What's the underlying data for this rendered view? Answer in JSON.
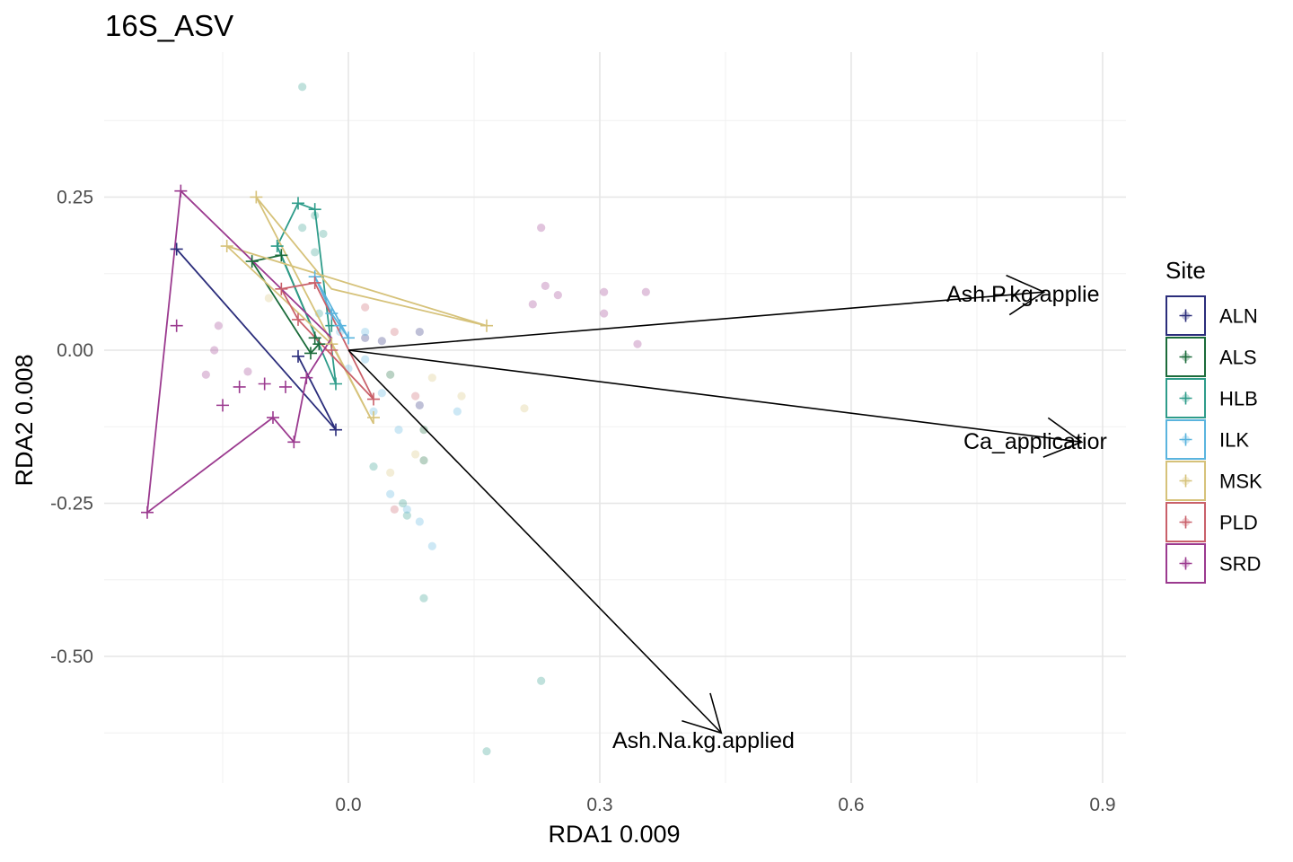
{
  "chart_data": {
    "type": "scatter",
    "title": "16S_ASV",
    "xlabel": "RDA1 0.009",
    "ylabel": "RDA2 0.008",
    "xlim": [
      -0.29,
      0.93
    ],
    "ylim": [
      -0.71,
      0.5
    ],
    "xticks": [
      0.0,
      0.3,
      0.6,
      0.9
    ],
    "xtick_labels": [
      "0.0",
      "0.3",
      "0.6",
      "0.9"
    ],
    "yticks": [
      0.25,
      0.0,
      -0.25,
      -0.5
    ],
    "ytick_labels": [
      "0.25",
      "0.00",
      "-0.25",
      "-0.50"
    ],
    "grid": true,
    "legend": {
      "title": "Site",
      "position": "right"
    },
    "series": [
      {
        "name": "ALN",
        "color": "#2b2d7b",
        "sites": [
          [
            -0.205,
            0.165
          ],
          [
            -0.06,
            -0.01
          ],
          [
            -0.015,
            -0.13
          ]
        ],
        "hull": [
          [
            -0.205,
            0.165
          ],
          [
            -0.015,
            -0.13
          ],
          [
            -0.06,
            -0.01
          ]
        ],
        "species": [
          [
            0.04,
            0.015
          ],
          [
            0.085,
            0.03
          ],
          [
            0.085,
            -0.09
          ],
          [
            0.02,
            0.02
          ]
        ]
      },
      {
        "name": "ALS",
        "color": "#1b6b3a",
        "sites": [
          [
            -0.115,
            0.145
          ],
          [
            -0.08,
            0.155
          ],
          [
            -0.045,
            -0.005
          ],
          [
            -0.04,
            0.02
          ],
          [
            -0.035,
            0.01
          ]
        ],
        "hull": [
          [
            -0.115,
            0.145
          ],
          [
            -0.08,
            0.155
          ],
          [
            -0.035,
            0.01
          ],
          [
            -0.045,
            -0.005
          ],
          [
            -0.115,
            0.145
          ]
        ],
        "species": [
          [
            0.09,
            -0.18
          ],
          [
            0.05,
            -0.04
          ],
          [
            0.09,
            -0.13
          ]
        ]
      },
      {
        "name": "HLB",
        "color": "#2e9c8a",
        "sites": [
          [
            -0.06,
            0.24
          ],
          [
            -0.04,
            0.23
          ],
          [
            -0.085,
            0.17
          ],
          [
            -0.015,
            -0.055
          ],
          [
            -0.02,
            0.04
          ]
        ],
        "hull": [
          [
            -0.06,
            0.24
          ],
          [
            -0.04,
            0.23
          ],
          [
            -0.015,
            -0.055
          ],
          [
            -0.085,
            0.17
          ],
          [
            -0.06,
            0.24
          ]
        ],
        "species": [
          [
            -0.055,
            0.43
          ],
          [
            -0.04,
            0.22
          ],
          [
            -0.03,
            0.19
          ],
          [
            -0.055,
            0.2
          ],
          [
            0.09,
            -0.405
          ],
          [
            0.23,
            -0.54
          ],
          [
            0.165,
            -0.655
          ],
          [
            0.07,
            -0.27
          ],
          [
            0.03,
            -0.19
          ],
          [
            0.065,
            -0.25
          ],
          [
            -0.04,
            0.16
          ],
          [
            -0.035,
            0.06
          ]
        ]
      },
      {
        "name": "ILK",
        "color": "#5ab4de",
        "sites": [
          [
            -0.04,
            0.12
          ],
          [
            -0.01,
            0.04
          ],
          [
            0.0,
            0.02
          ],
          [
            -0.02,
            0.06
          ]
        ],
        "hull": [
          [
            -0.04,
            0.12
          ],
          [
            0.0,
            0.02
          ],
          [
            -0.02,
            0.06
          ],
          [
            -0.04,
            0.12
          ]
        ],
        "species": [
          [
            0.1,
            -0.32
          ],
          [
            0.085,
            -0.28
          ],
          [
            0.07,
            -0.26
          ],
          [
            0.05,
            -0.235
          ],
          [
            0.13,
            -0.1
          ],
          [
            0.04,
            -0.07
          ],
          [
            0.06,
            -0.13
          ],
          [
            0.0,
            -0.03
          ],
          [
            0.02,
            -0.015
          ],
          [
            0.03,
            -0.1
          ],
          [
            -0.01,
            0.03
          ],
          [
            0.02,
            0.03
          ]
        ]
      },
      {
        "name": "MSK",
        "color": "#d6c27a",
        "sites": [
          [
            -0.11,
            0.25
          ],
          [
            -0.145,
            0.17
          ],
          [
            0.165,
            0.04
          ],
          [
            0.03,
            -0.11
          ],
          [
            -0.02,
            0.01
          ]
        ],
        "hull": [
          [
            -0.11,
            0.25
          ],
          [
            -0.02,
            0.1
          ],
          [
            0.165,
            0.04
          ],
          [
            -0.145,
            0.17
          ],
          [
            -0.02,
            0.01
          ],
          [
            0.03,
            -0.12
          ],
          [
            -0.11,
            0.25
          ]
        ],
        "species": [
          [
            0.21,
            -0.095
          ],
          [
            0.135,
            -0.075
          ],
          [
            0.1,
            -0.045
          ],
          [
            0.08,
            -0.17
          ],
          [
            0.05,
            -0.2
          ],
          [
            -0.095,
            0.085
          ]
        ]
      },
      {
        "name": "PLD",
        "color": "#c9606a",
        "sites": [
          [
            -0.08,
            0.1
          ],
          [
            -0.04,
            0.11
          ],
          [
            0.03,
            -0.08
          ],
          [
            -0.06,
            0.05
          ],
          [
            -0.02,
            0.0
          ]
        ],
        "hull": [
          [
            -0.08,
            0.1
          ],
          [
            -0.04,
            0.11
          ],
          [
            0.03,
            -0.08
          ],
          [
            -0.06,
            0.05
          ],
          [
            -0.08,
            0.1
          ]
        ],
        "species": [
          [
            0.055,
            -0.26
          ],
          [
            0.08,
            -0.075
          ],
          [
            0.02,
            0.07
          ],
          [
            0.055,
            0.03
          ]
        ]
      },
      {
        "name": "SRD",
        "color": "#9b3a8f",
        "sites": [
          [
            -0.2,
            0.26
          ],
          [
            -0.24,
            -0.265
          ],
          [
            -0.205,
            0.04
          ],
          [
            -0.15,
            -0.09
          ],
          [
            -0.13,
            -0.06
          ],
          [
            -0.09,
            -0.11
          ],
          [
            -0.065,
            -0.15
          ],
          [
            -0.05,
            -0.045
          ],
          [
            -0.1,
            -0.055
          ],
          [
            -0.075,
            -0.06
          ]
        ],
        "hull": [
          [
            -0.2,
            0.26
          ],
          [
            -0.02,
            0.02
          ],
          [
            -0.05,
            -0.045
          ],
          [
            -0.065,
            -0.15
          ],
          [
            -0.09,
            -0.11
          ],
          [
            -0.24,
            -0.265
          ],
          [
            -0.2,
            0.26
          ]
        ],
        "species": [
          [
            0.23,
            0.2
          ],
          [
            0.235,
            0.105
          ],
          [
            0.25,
            0.09
          ],
          [
            0.22,
            0.075
          ],
          [
            0.305,
            0.095
          ],
          [
            0.305,
            0.06
          ],
          [
            0.355,
            0.095
          ],
          [
            0.345,
            0.01
          ],
          [
            -0.155,
            0.04
          ],
          [
            -0.16,
            0.0
          ],
          [
            -0.17,
            -0.04
          ],
          [
            -0.12,
            -0.035
          ]
        ]
      }
    ],
    "arrows": [
      {
        "label": "Ash.P.kg.applie",
        "x": 0.83,
        "y": 0.095
      },
      {
        "label": "Ca_applicatior",
        "x": 0.875,
        "y": -0.15
      },
      {
        "label": "Ash.Na.kg.applied",
        "x": 0.445,
        "y": -0.625
      }
    ]
  }
}
